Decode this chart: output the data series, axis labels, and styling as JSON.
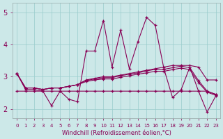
{
  "xlabel": "Windchill (Refroidissement éolien,°C)",
  "bg_color": "#cce8e8",
  "line_color": "#880055",
  "xlim": [
    -0.5,
    23.5
  ],
  "ylim": [
    1.7,
    5.3
  ],
  "yticks": [
    2,
    3,
    4,
    5
  ],
  "xticks": [
    0,
    1,
    2,
    3,
    4,
    5,
    6,
    7,
    8,
    9,
    10,
    11,
    12,
    13,
    14,
    15,
    16,
    17,
    18,
    19,
    20,
    21,
    22,
    23
  ],
  "series": [
    [
      3.1,
      2.6,
      2.6,
      2.55,
      2.1,
      2.55,
      2.3,
      2.22,
      3.8,
      3.8,
      4.75,
      3.3,
      4.45,
      3.25,
      4.1,
      4.85,
      4.6,
      3.25,
      2.35,
      2.6,
      3.3,
      2.55,
      1.9,
      2.4
    ],
    [
      3.1,
      2.65,
      2.65,
      2.6,
      2.65,
      2.65,
      2.7,
      2.75,
      2.9,
      2.95,
      3.0,
      3.0,
      3.05,
      3.1,
      3.15,
      3.2,
      3.25,
      3.3,
      3.35,
      3.35,
      3.35,
      3.3,
      2.9,
      2.9
    ],
    [
      3.1,
      2.65,
      2.65,
      2.6,
      2.65,
      2.65,
      2.7,
      2.75,
      2.88,
      2.93,
      2.97,
      2.97,
      3.03,
      3.08,
      3.12,
      3.18,
      3.23,
      3.23,
      3.28,
      3.33,
      3.28,
      2.88,
      2.55,
      2.45
    ],
    [
      3.1,
      2.65,
      2.65,
      2.6,
      2.65,
      2.65,
      2.7,
      2.75,
      2.85,
      2.9,
      2.93,
      2.93,
      2.98,
      3.03,
      3.08,
      3.12,
      3.17,
      3.17,
      3.22,
      3.27,
      3.22,
      2.82,
      2.52,
      2.42
    ],
    [
      2.55,
      2.55,
      2.55,
      2.55,
      2.55,
      2.55,
      2.55,
      2.55,
      2.55,
      2.55,
      2.55,
      2.55,
      2.55,
      2.55,
      2.55,
      2.55,
      2.55,
      2.55,
      2.55,
      2.55,
      2.55,
      2.55,
      2.55,
      2.45
    ]
  ]
}
